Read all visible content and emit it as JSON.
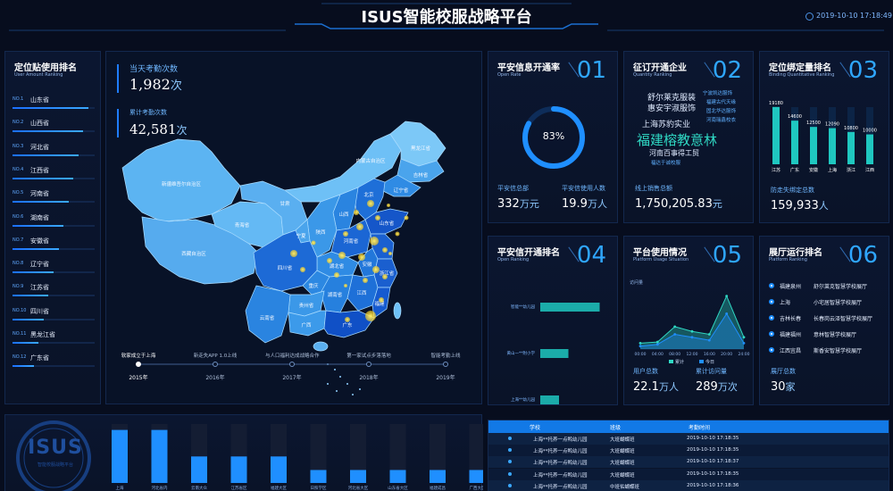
{
  "header": {
    "title": "ISUS智能校服战略平台",
    "datetime": "2019-10-10 17:18:49"
  },
  "ranking": {
    "title": "定位贴使用排名",
    "subtitle": "User Amount Ranking",
    "items": [
      {
        "no": "NO.1",
        "name": "山东省",
        "level": 0.92
      },
      {
        "no": "NO.2",
        "name": "山西省",
        "level": 0.86
      },
      {
        "no": "NO.3",
        "name": "河北省",
        "level": 0.8
      },
      {
        "no": "NO.4",
        "name": "江西省",
        "level": 0.74
      },
      {
        "no": "NO.5",
        "name": "河南省",
        "level": 0.68
      },
      {
        "no": "NO.6",
        "name": "湖南省",
        "level": 0.62
      },
      {
        "no": "NO.7",
        "name": "安徽省",
        "level": 0.56
      },
      {
        "no": "NO.8",
        "name": "辽宁省",
        "level": 0.5
      },
      {
        "no": "NO.9",
        "name": "江苏省",
        "level": 0.44
      },
      {
        "no": "NO.10",
        "name": "四川省",
        "level": 0.38
      },
      {
        "no": "NO.11",
        "name": "黑龙江省",
        "level": 0.32
      },
      {
        "no": "NO.12",
        "name": "广东省",
        "level": 0.26
      }
    ]
  },
  "map": {
    "today_label": "当天考勤次数",
    "today_value": "1,982",
    "today_unit": "次",
    "total_label": "累计考勤次数",
    "total_value": "42,581",
    "total_unit": "次",
    "provinces": [
      "新疆维吾尔自治区",
      "西藏自治区",
      "青海省",
      "甘肃",
      "内蒙古自治区",
      "黑龙江省",
      "吉林省",
      "辽宁省",
      "四川省",
      "云南省",
      "贵州省",
      "广西",
      "广东",
      "湖南省",
      "湖北省",
      "河南省",
      "山东省",
      "江西",
      "安徽",
      "浙江省",
      "福建",
      "陕西",
      "山西",
      "北京",
      "宁夏",
      "重庆"
    ],
    "timeline": [
      {
        "event": "软家成立于上海",
        "year": "2015年"
      },
      {
        "event": "新走失APP 1.0上线",
        "year": "2016年"
      },
      {
        "event": "与人口福利达成战略合作",
        "year": "2017年"
      },
      {
        "event": "第一家试点步落落地",
        "year": "2018年"
      },
      {
        "event": "智能考勤上线",
        "year": "2019年"
      }
    ]
  },
  "p01": {
    "title": "平安信息开通率",
    "subtitle": "Open Rate",
    "num": "01",
    "rate": 0.83,
    "rate_label": "83%",
    "a_label": "平安信总部",
    "a_value": "332",
    "a_unit": "万元",
    "b_label": "平安信使用人数",
    "b_value": "19.9",
    "b_unit": "万人"
  },
  "p02": {
    "title": "征订开通企业",
    "subtitle": "Quantity Ranking",
    "num": "02",
    "words": [
      "舒尔莱克服装",
      "惠安宇淑服饰",
      "宁波凯达服饰",
      "福建古代天缘",
      "固北华达服饰",
      "河南瑞鑫校衣",
      "上海苏豹实业",
      "福建榕教意林",
      "河南百事得工贸",
      "福达于诚校服"
    ],
    "sales_label": "线上销售总额",
    "sales_value": "1,750,205.83",
    "sales_unit": "元"
  },
  "p03": {
    "title": "定位绑定量排名",
    "subtitle": "Binding Quantitative Ranking",
    "num": "03",
    "chart_data": {
      "type": "bar",
      "categories": [
        "江苏",
        "广东",
        "安徽",
        "上海",
        "浙江",
        "江西"
      ],
      "values": [
        19180,
        14600,
        12500,
        12090,
        10800,
        10000
      ],
      "ylim": [
        0,
        22000
      ]
    },
    "total_label": "防走失绑定总数",
    "total_value": "159,933",
    "total_unit": "人"
  },
  "p04": {
    "title": "平安信开通排名",
    "subtitle": "Open Ranking",
    "num": "04",
    "chart_data": {
      "type": "bar",
      "categories": [
        "智能**幼儿园",
        "黄山一**附小学",
        "上海**幼儿园"
      ],
      "values": [
        0.95,
        0.45,
        0.3
      ]
    }
  },
  "p05": {
    "title": "平台使用情况",
    "subtitle": "Platform Usage Situation",
    "num": "05",
    "ylabel": "访问量",
    "chart_data": {
      "type": "area",
      "x": [
        "00:00",
        "04:00",
        "08:00",
        "12:00",
        "16:00",
        "20:00",
        "24:00"
      ],
      "series": [
        {
          "name": "累计",
          "values": [
            10,
            12,
            38,
            30,
            25,
            90,
            20
          ]
        },
        {
          "name": "今日",
          "values": [
            5,
            8,
            25,
            20,
            15,
            60,
            10
          ]
        }
      ],
      "ylim": [
        0,
        100
      ]
    },
    "a_label": "用户总数",
    "a_value": "22.1",
    "a_unit": "万人",
    "b_label": "累计访问量",
    "b_value": "289",
    "b_unit": "万次"
  },
  "p06": {
    "title": "展厅运行排名",
    "subtitle": "Platform Ranking",
    "num": "06",
    "rows": [
      {
        "city": "福建泉州",
        "hall": "舒尔莱克智慧学校展厅"
      },
      {
        "city": "上海",
        "hall": "小宅居智慧学校展厅"
      },
      {
        "city": "吉林长春",
        "hall": "长春岗云泽智慧学校展厅"
      },
      {
        "city": "福建福州",
        "hall": "意林智慧学校展厅"
      },
      {
        "city": "江西宜昌",
        "hall": "斯香安智慧学校展厅"
      }
    ],
    "total_label": "展厅总数",
    "total_value": "30",
    "total_unit": "家"
  },
  "bottom_bars": {
    "logo_text": "ISUS",
    "logo_sub": "智能校服战略平台",
    "chart_data": {
      "type": "bar",
      "categories": [
        "上海",
        "河北省内",
        "云南大众",
        "江苏省区",
        "福建大区",
        "日照学区",
        "河北省大区",
        "山东省大区",
        "福建成昌",
        "广西大区"
      ],
      "values": [
        0.9,
        0.9,
        0.45,
        0.45,
        0.45,
        0.22,
        0.22,
        0.22,
        0.22,
        0.22
      ]
    }
  },
  "table": {
    "headers": [
      "学校",
      "班级",
      "考勤时间"
    ],
    "rows": [
      {
        "school": "上海**托养一点鸭幼儿园",
        "cls": "大班蝴蝶班",
        "time": "2019-10-10 17:18:35"
      },
      {
        "school": "上海**托养一点鸭幼儿园",
        "cls": "大班蝴蝶班",
        "time": "2019-10-10 17:18:35"
      },
      {
        "school": "上海**托养一点鸭幼儿园",
        "cls": "大班蝴蝶班",
        "time": "2019-10-10 17:18:37"
      },
      {
        "school": "上海**托养一点鸭幼儿园",
        "cls": "大班蝴蝶班",
        "time": "2019-10-10 17:18:35"
      },
      {
        "school": "上海**托养一点鸭幼儿园",
        "cls": "中班佑蝴蝶班",
        "time": "2019-10-10 17:18:36"
      }
    ]
  },
  "colors": {
    "accent": "#2fa6ff",
    "cyan": "#1fd3c6",
    "bg": "#070d1e"
  }
}
